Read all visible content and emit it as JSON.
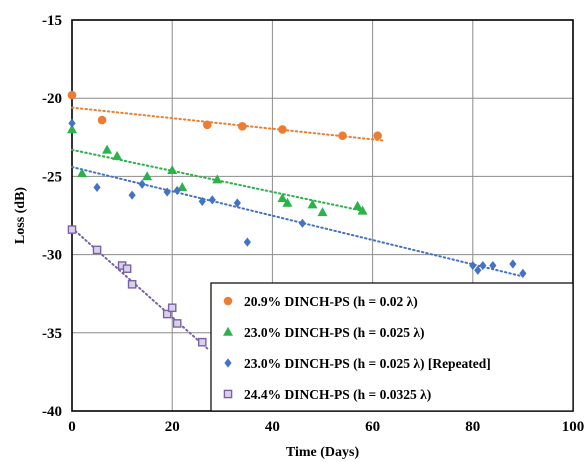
{
  "chart_data": {
    "type": "scatter",
    "title": "",
    "xlabel": "Time (Days)",
    "ylabel": "Loss (dB)",
    "xlim": [
      0,
      100
    ],
    "ylim": [
      -40,
      -15
    ],
    "xticks": [
      0,
      20,
      40,
      60,
      80,
      100
    ],
    "yticks": [
      -15,
      -20,
      -25,
      -30,
      -35,
      -40
    ],
    "grid": true,
    "legend_position": "bottom-right",
    "series": [
      {
        "name": "20.9% DINCH-PS (h = 0.02 λ)",
        "color": "#ED7D31",
        "marker": "circle",
        "trendline": {
          "x": [
            0,
            62
          ],
          "y": [
            -20.6,
            -22.7
          ]
        },
        "x": [
          0,
          6,
          27,
          34,
          42,
          54,
          61
        ],
        "y": [
          -19.8,
          -21.4,
          -21.7,
          -21.8,
          -22.0,
          -22.4,
          -22.4
        ]
      },
      {
        "name": "23.0% DINCH-PS (h = 0.025 λ)",
        "color": "#2CB24A",
        "marker": "triangle",
        "trendline": {
          "x": [
            0,
            58
          ],
          "y": [
            -23.3,
            -27.2
          ]
        },
        "x": [
          0,
          2,
          7,
          9,
          15,
          20,
          22,
          29,
          42,
          43,
          48,
          50,
          57,
          58
        ],
        "y": [
          -22.0,
          -24.8,
          -23.3,
          -23.7,
          -25.0,
          -24.6,
          -25.7,
          -25.2,
          -26.4,
          -26.7,
          -26.8,
          -27.3,
          -26.9,
          -27.2
        ]
      },
      {
        "name": "23.0% DINCH-PS (h = 0.025 λ) [Repeated]",
        "color": "#4472C4",
        "marker": "diamond",
        "trendline": {
          "x": [
            0,
            90
          ],
          "y": [
            -24.4,
            -31.4
          ]
        },
        "x": [
          0,
          5,
          12,
          14,
          19,
          21,
          26,
          28,
          33,
          35,
          46,
          80,
          81,
          82,
          84,
          88,
          90
        ],
        "y": [
          -21.6,
          -25.7,
          -26.2,
          -25.5,
          -26.0,
          -25.9,
          -26.6,
          -26.5,
          -26.7,
          -29.2,
          -28.0,
          -30.7,
          -31.0,
          -30.7,
          -30.7,
          -30.6,
          -31.2
        ]
      },
      {
        "name": "24.4% DINCH-PS (h = 0.0325 λ)",
        "color": "#7A62A8",
        "marker": "square-open",
        "trendline": {
          "x": [
            0,
            27
          ],
          "y": [
            -28.3,
            -36.0
          ]
        },
        "x": [
          0,
          5,
          10,
          11,
          12,
          19,
          20,
          21,
          26
        ],
        "y": [
          -28.4,
          -29.7,
          -30.7,
          -30.9,
          -31.9,
          -33.8,
          -33.4,
          -34.4,
          -35.6
        ]
      }
    ]
  }
}
